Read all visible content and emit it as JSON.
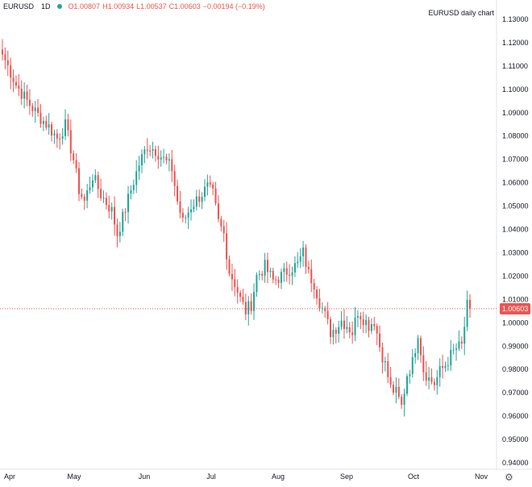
{
  "legend": {
    "symbol": "EURUSD",
    "interval": "1D",
    "open": "O1.00807",
    "high": "H1.00934",
    "low": "L1.00537",
    "close": "C1.00603",
    "change": "−0.00194 (−0.19%)"
  },
  "chart_data": {
    "type": "candlestick",
    "title": "EURUSD daily chart",
    "y_ticks": [
      "1.13000",
      "1.12000",
      "1.11000",
      "1.10000",
      "1.09000",
      "1.08000",
      "1.07000",
      "1.06000",
      "1.05000",
      "1.04000",
      "1.03000",
      "1.02000",
      "1.01000",
      "1.00000",
      "0.99000",
      "0.98000",
      "0.97000",
      "0.96000",
      "0.95000",
      "0.94000"
    ],
    "x_ticks": [
      "Apr",
      "May",
      "Jun",
      "Jul",
      "Aug",
      "Sep",
      "Oct",
      "Nov"
    ],
    "ylim": [
      0.9385,
      1.1325
    ],
    "last_price": "1.00603",
    "close_path": [
      [
        0,
        1.115
      ],
      [
        2,
        1.11
      ],
      [
        5,
        1.102
      ],
      [
        9,
        1.095
      ],
      [
        13,
        1.089
      ],
      [
        17,
        1.084
      ],
      [
        20,
        1.079
      ],
      [
        23,
        1.0845
      ],
      [
        26,
        1.07
      ],
      [
        28,
        1.057
      ],
      [
        30,
        1.052
      ],
      [
        33,
        1.063
      ],
      [
        36,
        1.055
      ],
      [
        40,
        1.048
      ],
      [
        42,
        1.038
      ],
      [
        44,
        1.045
      ],
      [
        47,
        1.057
      ],
      [
        50,
        1.068
      ],
      [
        53,
        1.076
      ],
      [
        56,
        1.074
      ],
      [
        59,
        1.07
      ],
      [
        62,
        1.066
      ],
      [
        64,
        1.052
      ],
      [
        66,
        1.043
      ],
      [
        69,
        1.05
      ],
      [
        72,
        1.054
      ],
      [
        75,
        1.058
      ],
      [
        77,
        1.055
      ],
      [
        79,
        1.043
      ],
      [
        81,
        1.038
      ],
      [
        83,
        1.022
      ],
      [
        85,
        1.017
      ],
      [
        87,
        1.01
      ],
      [
        89,
        1.005
      ],
      [
        91,
        1.008
      ],
      [
        93,
        1.02
      ],
      [
        96,
        1.024
      ],
      [
        99,
        1.018
      ],
      [
        102,
        1.02
      ],
      [
        105,
        1.023
      ],
      [
        108,
        1.025
      ],
      [
        110,
        1.03
      ],
      [
        112,
        1.021
      ],
      [
        114,
        1.017
      ],
      [
        116,
        1.009
      ],
      [
        118,
        1.003
      ],
      [
        120,
        0.996
      ],
      [
        122,
        0.998
      ],
      [
        124,
        1.001
      ],
      [
        126,
        0.999
      ],
      [
        128,
        0.996
      ],
      [
        130,
        1.005
      ],
      [
        132,
        1.002
      ],
      [
        134,
        0.999
      ],
      [
        136,
        1.001
      ],
      [
        138,
        0.99
      ],
      [
        140,
        0.982
      ],
      [
        142,
        0.972
      ],
      [
        144,
        0.97
      ],
      [
        146,
        0.964
      ],
      [
        148,
        0.978
      ],
      [
        150,
        0.983
      ],
      [
        152,
        0.996
      ],
      [
        154,
        0.98
      ],
      [
        156,
        0.976
      ],
      [
        158,
        0.974
      ],
      [
        160,
        0.979
      ],
      [
        162,
        0.982
      ],
      [
        164,
        0.986
      ],
      [
        166,
        0.989
      ],
      [
        168,
        0.99
      ],
      [
        170,
        1.007
      ],
      [
        171,
        1.006
      ]
    ]
  }
}
